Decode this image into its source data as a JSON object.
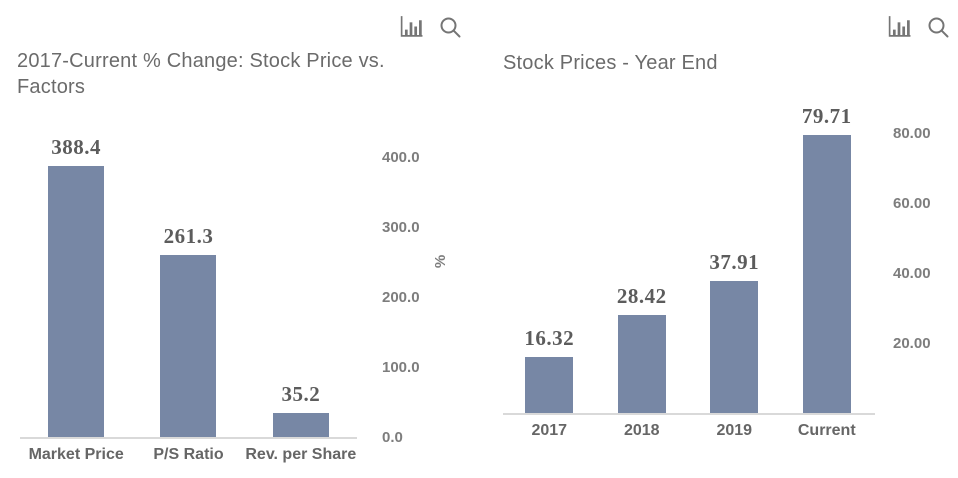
{
  "colors": {
    "bar": "#7787a5",
    "title_text": "#6b6b6b",
    "data_label": "#5c5c5c",
    "tick_label": "#7d7d7d",
    "category_label": "#666666",
    "axis_line": "#d9d9d9",
    "icon": "#757575",
    "background": "#ffffff"
  },
  "toolbar": {
    "icons": [
      "bar-chart",
      "zoom"
    ]
  },
  "chart_data": [
    {
      "type": "bar",
      "title": "2017-Current % Change: Stock Price vs. Factors",
      "categories": [
        "Market Price",
        "P/S Ratio",
        "Rev. per Share"
      ],
      "values": [
        388.4,
        261.3,
        35.2
      ],
      "data_labels": [
        "388.4",
        "261.3",
        "35.2"
      ],
      "xlabel": "",
      "ylabel": "%",
      "ylim": [
        0,
        450
      ],
      "yticks": [
        0,
        100,
        200,
        300,
        400
      ],
      "ytick_labels": [
        "0.0",
        "100.0",
        "200.0",
        "300.0",
        "400.0"
      ],
      "axis_side": "right",
      "grid": false,
      "legend": "none",
      "bar_color": "#7787a5"
    },
    {
      "type": "bar",
      "title": "Stock Prices - Year End",
      "categories": [
        "2017",
        "2018",
        "2019",
        "Current"
      ],
      "values": [
        16.32,
        28.42,
        37.91,
        79.71
      ],
      "data_labels": [
        "16.32",
        "28.42",
        "37.91",
        "79.71"
      ],
      "xlabel": "",
      "ylabel": "",
      "ylim": [
        0,
        90
      ],
      "yticks": [
        20,
        40,
        60,
        80
      ],
      "ytick_labels": [
        "20.00",
        "40.00",
        "60.00",
        "80.00"
      ],
      "axis_side": "right",
      "grid": false,
      "legend": "none",
      "bar_color": "#7787a5"
    }
  ]
}
